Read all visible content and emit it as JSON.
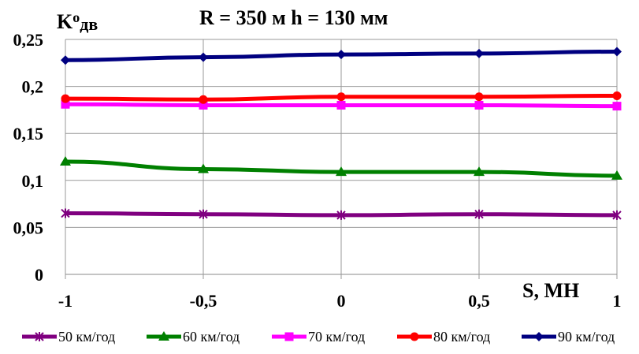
{
  "chart_data": {
    "type": "line",
    "title": "R = 350 м  h = 130 мм",
    "ylabel": {
      "main": "K",
      "sup": "о",
      "sub": "дв"
    },
    "xlabel": "S, МН",
    "x": [
      -1,
      -0.5,
      0,
      0.5,
      1
    ],
    "xlim": [
      -1,
      1
    ],
    "ylim": [
      0,
      0.25
    ],
    "x_tick_labels": [
      "-1",
      "-0,5",
      "0",
      "0,5",
      "1"
    ],
    "y_ticks": [
      0,
      0.05,
      0.1,
      0.15,
      0.2,
      0.25
    ],
    "y_tick_labels": [
      "0",
      "0,05",
      "0,1",
      "0,15",
      "0,2",
      "0,25"
    ],
    "grid": true,
    "legend_position": "bottom",
    "series": [
      {
        "name": "50 км/год",
        "color": "#800080",
        "marker": "asterisk",
        "values": [
          0.065,
          0.064,
          0.063,
          0.064,
          0.063
        ]
      },
      {
        "name": "60 км/год",
        "color": "#008000",
        "marker": "triangle",
        "values": [
          0.12,
          0.112,
          0.109,
          0.109,
          0.105
        ]
      },
      {
        "name": "70 км/год",
        "color": "#FF00FF",
        "marker": "square",
        "values": [
          0.181,
          0.18,
          0.18,
          0.18,
          0.179
        ]
      },
      {
        "name": "80 км/год",
        "color": "#FF0000",
        "marker": "circle",
        "values": [
          0.187,
          0.186,
          0.189,
          0.189,
          0.19
        ]
      },
      {
        "name": "90 км/год",
        "color": "#000080",
        "marker": "diamond",
        "values": [
          0.228,
          0.231,
          0.234,
          0.235,
          0.237
        ]
      }
    ]
  }
}
